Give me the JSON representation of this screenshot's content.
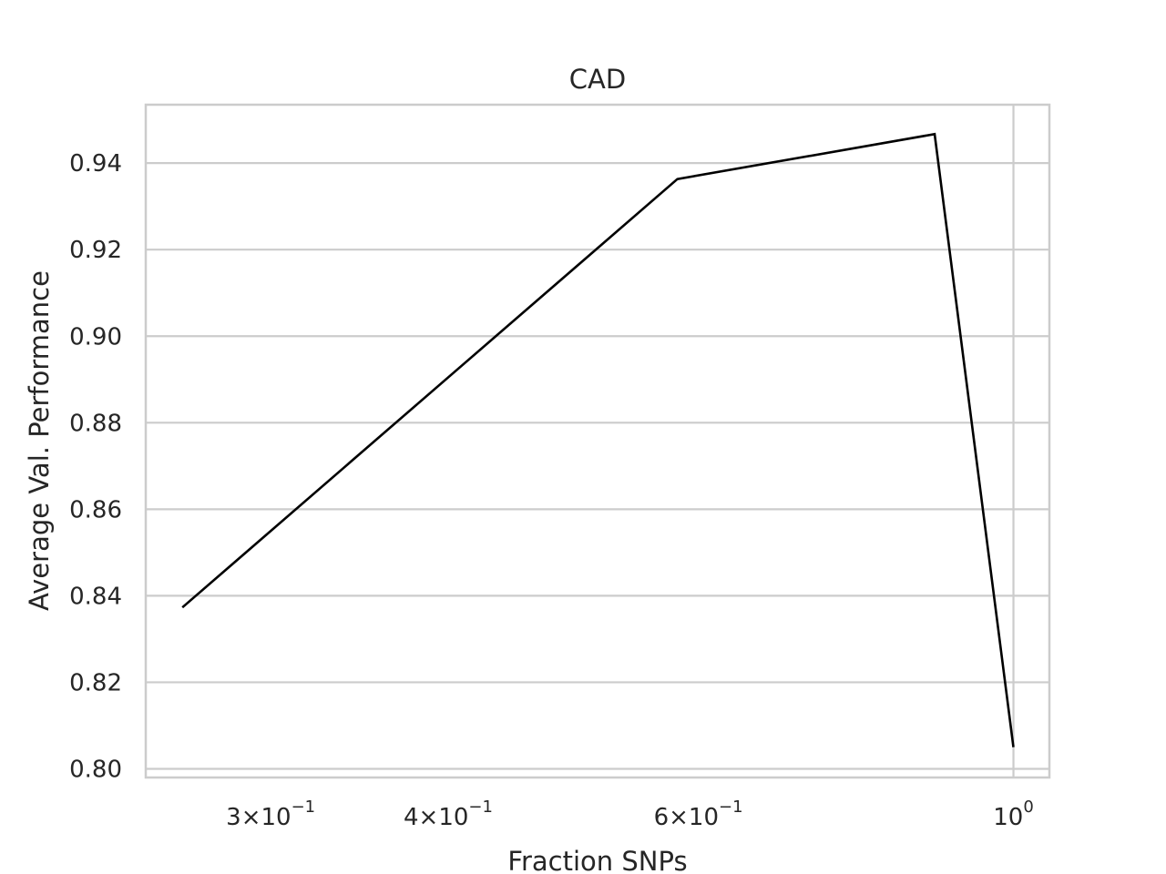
{
  "chart_data": {
    "type": "line",
    "title": "CAD",
    "xlabel": "Fraction SNPs",
    "ylabel": "Average Val. Performance",
    "x_scale": "log",
    "xlim": [
      0.245,
      1.06
    ],
    "ylim": [
      0.798,
      0.9535
    ],
    "grid": true,
    "x_ticks": [
      {
        "value": 0.3,
        "base": "3×10",
        "exp": "−1"
      },
      {
        "value": 0.4,
        "base": "4×10",
        "exp": "−1"
      },
      {
        "value": 0.6,
        "base": "6×10",
        "exp": "−1"
      },
      {
        "value": 1.0,
        "base": "10",
        "exp": "0"
      }
    ],
    "y_ticks": [
      {
        "value": 0.8,
        "label": "0.80"
      },
      {
        "value": 0.82,
        "label": "0.82"
      },
      {
        "value": 0.84,
        "label": "0.84"
      },
      {
        "value": 0.86,
        "label": "0.86"
      },
      {
        "value": 0.88,
        "label": "0.88"
      },
      {
        "value": 0.9,
        "label": "0.90"
      },
      {
        "value": 0.92,
        "label": "0.92"
      },
      {
        "value": 0.94,
        "label": "0.94"
      }
    ],
    "series": [
      {
        "color": "#000000",
        "x": [
          0.26,
          0.58,
          0.88,
          1.0
        ],
        "y": [
          0.8373,
          0.9363,
          0.9467,
          0.805
        ]
      }
    ]
  }
}
